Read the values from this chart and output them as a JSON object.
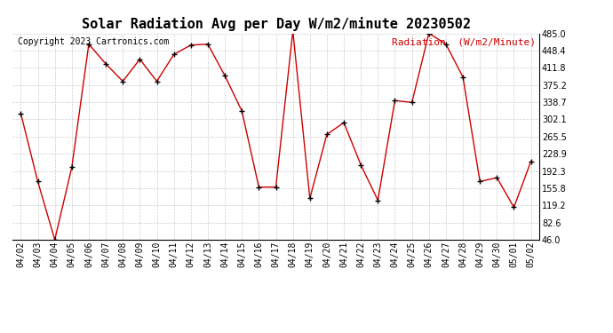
{
  "title": "Solar Radiation Avg per Day W/m2/minute 20230502",
  "copyright": "Copyright 2023 Cartronics.com",
  "legend_label": "Radiation  (W/m2/Minute)",
  "dates": [
    "04/02",
    "04/03",
    "04/04",
    "04/05",
    "04/06",
    "04/07",
    "04/08",
    "04/09",
    "04/10",
    "04/11",
    "04/12",
    "04/13",
    "04/14",
    "04/15",
    "04/16",
    "04/17",
    "04/18",
    "04/19",
    "04/20",
    "04/21",
    "04/22",
    "04/23",
    "04/24",
    "04/25",
    "04/26",
    "04/27",
    "04/28",
    "04/29",
    "04/30",
    "05/01",
    "05/02"
  ],
  "values": [
    315,
    170,
    46,
    200,
    462,
    420,
    383,
    430,
    383,
    440,
    460,
    462,
    395,
    320,
    158,
    158,
    490,
    134,
    270,
    295,
    205,
    130,
    342,
    338,
    485,
    462,
    392,
    170,
    178,
    115,
    213
  ],
  "line_color": "#cc0000",
  "marker_color": "#000000",
  "background_color": "#ffffff",
  "grid_color": "#cccccc",
  "ylim": [
    46.0,
    485.0
  ],
  "yticks": [
    46.0,
    82.6,
    119.2,
    155.8,
    192.3,
    228.9,
    265.5,
    302.1,
    338.7,
    375.2,
    411.8,
    448.4,
    485.0
  ],
  "title_fontsize": 11,
  "copyright_fontsize": 7,
  "legend_fontsize": 8,
  "tick_fontsize": 7,
  "fig_width": 6.9,
  "fig_height": 3.75,
  "dpi": 100
}
